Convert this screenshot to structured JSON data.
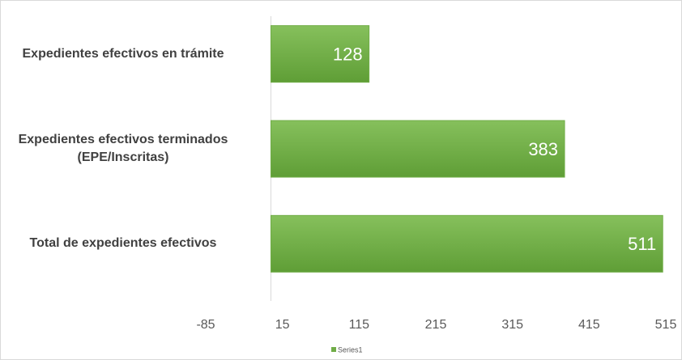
{
  "chart_data": {
    "type": "bar",
    "orientation": "horizontal",
    "categories": [
      "Expedientes efectivos en trámite",
      "Expedientes efectivos terminados\n(EPE/Inscritas)",
      "Total de expedientes efectivos"
    ],
    "series": [
      {
        "name": "Series1",
        "color": "#70ad47",
        "values": [
          128,
          383,
          511
        ]
      }
    ],
    "xlim": [
      -85,
      515
    ],
    "xticks": [
      -85,
      15,
      115,
      215,
      315,
      415,
      515
    ],
    "grid": false,
    "legend": "bottom"
  }
}
